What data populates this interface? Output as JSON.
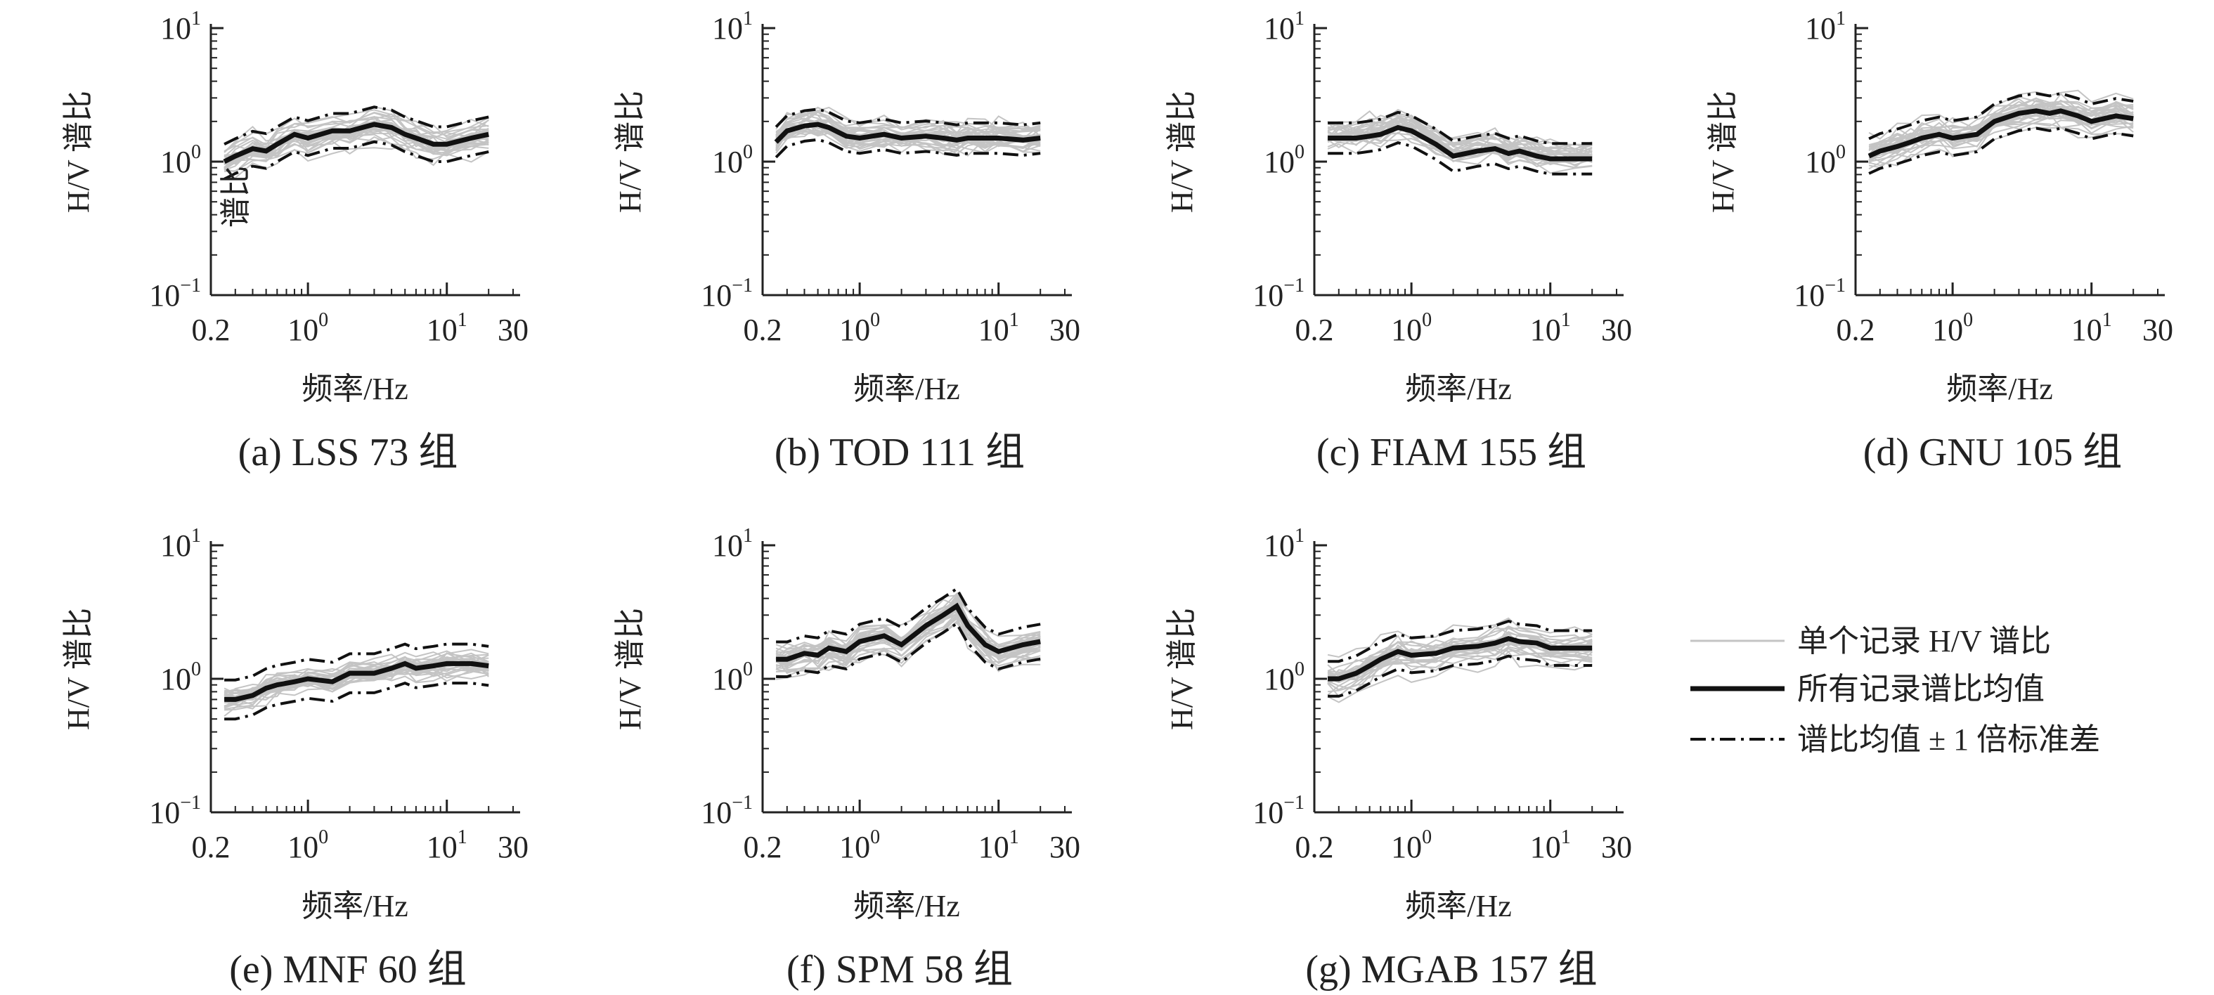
{
  "chart_data": {
    "type": "line",
    "shared": {
      "xlabel": "频率/Hz",
      "ylabel": "H/V 谱比",
      "xscale": "log",
      "yscale": "log",
      "xlim": [
        0.2,
        30
      ],
      "ylim": [
        0.1,
        10
      ],
      "xticks": [
        {
          "value": 0.2,
          "label": "0.2"
        },
        {
          "value": 1,
          "label": "10",
          "sup": "0"
        },
        {
          "value": 10,
          "label": "10",
          "sup": "1"
        },
        {
          "value": 30,
          "label": "30"
        }
      ],
      "yticks": [
        {
          "value": 0.1,
          "label": "10",
          "sup": "−1"
        },
        {
          "value": 1,
          "label": "10",
          "sup": "0"
        },
        {
          "value": 10,
          "label": "10",
          "sup": "1"
        }
      ],
      "x": [
        0.25,
        0.3,
        0.4,
        0.5,
        0.6,
        0.8,
        1,
        1.5,
        2,
        3,
        4,
        5,
        6,
        8,
        10,
        15,
        20
      ]
    },
    "legend": {
      "position": "right",
      "items": [
        {
          "label": "单个记录 H/V 谱比",
          "style": "gray-thin"
        },
        {
          "label": "所有记录谱比均值",
          "style": "black-thick"
        },
        {
          "label": "谱比均值 ± 1 倍标准差",
          "style": "dash-dot"
        }
      ]
    },
    "panels": [
      {
        "caption": "(a) LSS 73 组",
        "mean": [
          1.0,
          1.1,
          1.25,
          1.2,
          1.35,
          1.6,
          1.5,
          1.7,
          1.7,
          1.9,
          1.8,
          1.6,
          1.5,
          1.35,
          1.35,
          1.5,
          1.6
        ],
        "sigma_factor": 1.35,
        "record_count": 30,
        "stray_labels": [
          "谱比"
        ]
      },
      {
        "caption": "(b) TOD 111 组",
        "mean": [
          1.4,
          1.7,
          1.85,
          1.9,
          1.8,
          1.55,
          1.5,
          1.6,
          1.5,
          1.55,
          1.5,
          1.45,
          1.5,
          1.5,
          1.5,
          1.45,
          1.5
        ],
        "sigma_factor": 1.3,
        "record_count": 30
      },
      {
        "caption": "(c) FIAM 155 组",
        "mean": [
          1.5,
          1.5,
          1.5,
          1.55,
          1.6,
          1.8,
          1.7,
          1.35,
          1.1,
          1.2,
          1.25,
          1.15,
          1.2,
          1.1,
          1.05,
          1.05,
          1.05
        ],
        "sigma_factor": 1.3,
        "record_count": 30
      },
      {
        "caption": "(d) GNU 105 组",
        "mean": [
          1.1,
          1.2,
          1.3,
          1.4,
          1.5,
          1.6,
          1.5,
          1.6,
          2.0,
          2.3,
          2.4,
          2.3,
          2.4,
          2.2,
          2.0,
          2.2,
          2.1
        ],
        "sigma_factor": 1.35,
        "record_count": 30
      },
      {
        "caption": "(e) MNF 60 组",
        "mean": [
          0.7,
          0.7,
          0.75,
          0.85,
          0.9,
          0.95,
          1.0,
          0.95,
          1.1,
          1.1,
          1.2,
          1.3,
          1.2,
          1.25,
          1.3,
          1.3,
          1.25
        ],
        "sigma_factor": 1.4,
        "record_count": 30
      },
      {
        "caption": "(f) SPM 58 组",
        "mean": [
          1.4,
          1.4,
          1.55,
          1.5,
          1.7,
          1.6,
          1.9,
          2.1,
          1.8,
          2.5,
          3.0,
          3.5,
          2.5,
          1.8,
          1.6,
          1.8,
          1.9
        ],
        "sigma_factor": 1.35,
        "record_count": 30
      },
      {
        "caption": "(g) MGAB 157 组",
        "mean": [
          1.0,
          1.0,
          1.1,
          1.25,
          1.4,
          1.6,
          1.5,
          1.55,
          1.7,
          1.75,
          1.85,
          2.0,
          1.9,
          1.85,
          1.7,
          1.7,
          1.7
        ],
        "sigma_factor": 1.35,
        "record_count": 30
      }
    ]
  }
}
